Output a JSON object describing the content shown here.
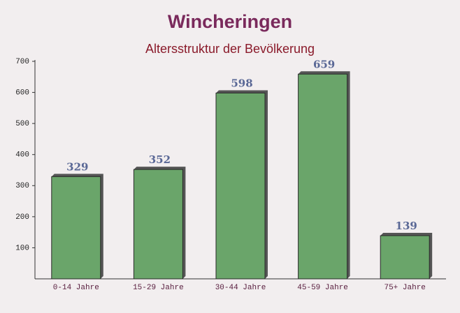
{
  "chart_data": {
    "type": "bar",
    "title": "Wincheringen",
    "subtitle": "Altersstruktur der Bevölkerung",
    "categories": [
      "0-14 Jahre",
      "15-29 Jahre",
      "30-44 Jahre",
      "45-59 Jahre",
      "75+ Jahre"
    ],
    "values": [
      329,
      352,
      598,
      659,
      139
    ],
    "color": "#6aa56a",
    "ylim": [
      0,
      700
    ],
    "yticks": [
      100,
      200,
      300,
      400,
      500,
      600,
      700
    ],
    "grid": false
  }
}
